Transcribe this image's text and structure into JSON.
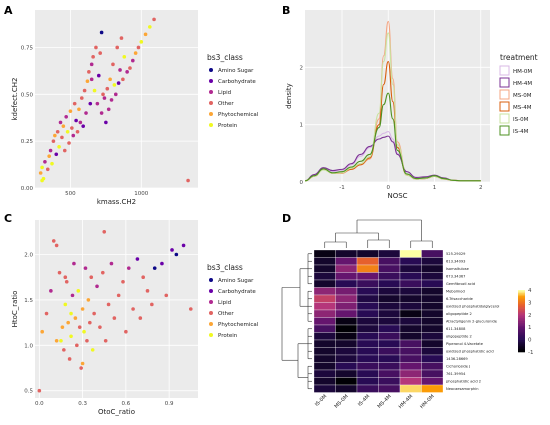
{
  "panels": {
    "A": {
      "letter": "A",
      "xlabel": "kmass.CH2",
      "ylabel": "kdefect.CH2",
      "xticks": [
        "500",
        "1000"
      ],
      "yticks": [
        "0.00",
        "0.25",
        "0.50",
        "0.75"
      ],
      "legend_title": "bs3_class",
      "legend_items": [
        "Amino Sugar",
        "Carbohydrate",
        "Lipid",
        "Other",
        "Phytochemical",
        "Protein"
      ]
    },
    "B": {
      "letter": "B",
      "xlabel": "NOSC",
      "ylabel": "density",
      "xticks": [
        "-1",
        "0",
        "1",
        "2"
      ],
      "yticks": [
        "0",
        "1",
        "2"
      ],
      "legend_title": "treatment",
      "legend_items": [
        "HM-0M",
        "HM-4M",
        "MS-0M",
        "MS-4M",
        "IS-0M",
        "IS-4M"
      ]
    },
    "C": {
      "letter": "C",
      "xlabel": "OtoC_ratio",
      "ylabel": "HtoC_ratio",
      "xticks": [
        "0.0",
        "0.3",
        "0.6",
        "0.9"
      ],
      "yticks": [
        "0.5",
        "1.0",
        "1.5",
        "2.0"
      ],
      "legend_title": "bs3_class",
      "legend_items": [
        "Amino Sugar",
        "Carbohydrate",
        "Lipid",
        "Other",
        "Phytochemical",
        "Protein"
      ]
    },
    "D": {
      "letter": "D",
      "columns": [
        "IS-0M",
        "MS-0M",
        "IS-4M",
        "MS-4M",
        "HM-4M",
        "HM-0M"
      ],
      "rows": [
        "525.29029",
        "613.34093",
        "Isomaltulose",
        "673.34367",
        "Gemfibrozil acid",
        "Mebolmod",
        "6-Trisaccharide",
        "oxidized phosphatidylglycerol",
        "oligopeptide 2",
        "Atractyligenin 2-glucuronide",
        "611.34808",
        "oligopeptide 2",
        "Piperonol 4-Vacetate",
        "oxidized phosphatidic acid",
        "1436.28669",
        "Cichorioside J",
        "761.39954",
        "phosphatidic acid 2",
        "Neocaesamorphin"
      ],
      "colorbar_ticks": [
        "4",
        "3",
        "2",
        "1",
        "0",
        "-1"
      ]
    }
  },
  "colors": {
    "Amino Sugar": "#0d0887",
    "Carbohydrate": "#6a00a8",
    "Lipid": "#b12a90",
    "Other": "#e16462",
    "Phytochemical": "#fca636",
    "Protein": "#f0f921",
    "HM-0M": "#d9b8e6",
    "HM-4M": "#7b3294",
    "MS-0M": "#f4a582",
    "MS-4M": "#d95f0e",
    "IS-0M": "#c9e3a0",
    "IS-4M": "#4d9221"
  },
  "chart_data": [
    {
      "type": "scatter",
      "panel": "A",
      "xlim": [
        250,
        1400
      ],
      "ylim": [
        0,
        0.95
      ],
      "grid": true,
      "legend_placement": "right",
      "points": [
        [
          290,
          0.08,
          "Phytochemical"
        ],
        [
          300,
          0.11,
          "Protein"
        ],
        [
          310,
          0.05,
          "Protein"
        ],
        [
          320,
          0.14,
          "Lipid"
        ],
        [
          340,
          0.1,
          "Other"
        ],
        [
          350,
          0.17,
          "Phytochemical"
        ],
        [
          360,
          0.2,
          "Lipid"
        ],
        [
          370,
          0.13,
          "Protein"
        ],
        [
          380,
          0.25,
          "Other"
        ],
        [
          390,
          0.28,
          "Phytochemical"
        ],
        [
          400,
          0.18,
          "Carbohydrate"
        ],
        [
          410,
          0.3,
          "Other"
        ],
        [
          420,
          0.22,
          "Protein"
        ],
        [
          430,
          0.35,
          "Lipid"
        ],
        [
          440,
          0.27,
          "Other"
        ],
        [
          450,
          0.33,
          "Phytochemical"
        ],
        [
          460,
          0.2,
          "Other"
        ],
        [
          470,
          0.38,
          "Lipid"
        ],
        [
          480,
          0.3,
          "Protein"
        ],
        [
          490,
          0.24,
          "Other"
        ],
        [
          500,
          0.41,
          "Phytochemical"
        ],
        [
          510,
          0.32,
          "Other"
        ],
        [
          520,
          0.28,
          "Lipid"
        ],
        [
          530,
          0.45,
          "Other"
        ],
        [
          540,
          0.36,
          "Carbohydrate"
        ],
        [
          550,
          0.3,
          "Other"
        ],
        [
          560,
          0.42,
          "Phytochemical"
        ],
        [
          570,
          0.35,
          "Lipid"
        ],
        [
          580,
          0.48,
          "Other"
        ],
        [
          590,
          0.33,
          "Carbohydrate"
        ],
        [
          600,
          0.52,
          "Other"
        ],
        [
          610,
          0.4,
          "Lipid"
        ],
        [
          620,
          0.57,
          "Phytochemical"
        ],
        [
          630,
          0.62,
          "Other"
        ],
        [
          640,
          0.45,
          "Carbohydrate"
        ],
        [
          650,
          0.66,
          "Lipid"
        ],
        [
          660,
          0.7,
          "Other"
        ],
        [
          670,
          0.52,
          "Protein"
        ],
        [
          680,
          0.75,
          "Other"
        ],
        [
          690,
          0.45,
          "Lipid"
        ],
        [
          700,
          0.6,
          "Carbohydrate"
        ],
        [
          710,
          0.72,
          "Other"
        ],
        [
          720,
          0.4,
          "Lipid"
        ],
        [
          730,
          0.5,
          "Other"
        ],
        [
          740,
          0.48,
          "Lipid"
        ],
        [
          750,
          0.35,
          "Carbohydrate"
        ],
        [
          760,
          0.53,
          "Other"
        ],
        [
          770,
          0.42,
          "Lipid"
        ],
        [
          780,
          0.58,
          "Phytochemical"
        ],
        [
          790,
          0.47,
          "Lipid"
        ],
        [
          800,
          0.66,
          "Other"
        ],
        [
          810,
          0.55,
          "Protein"
        ],
        [
          820,
          0.5,
          "Lipid"
        ],
        [
          830,
          0.75,
          "Other"
        ],
        [
          840,
          0.56,
          "Carbohydrate"
        ],
        [
          850,
          0.63,
          "Lipid"
        ],
        [
          860,
          0.8,
          "Other"
        ],
        [
          870,
          0.58,
          "Other"
        ],
        [
          880,
          0.7,
          "Protein"
        ],
        [
          900,
          0.62,
          "Lipid"
        ],
        [
          920,
          0.64,
          "Other"
        ],
        [
          940,
          0.68,
          "Lipid"
        ],
        [
          960,
          0.72,
          "Phytochemical"
        ],
        [
          980,
          0.75,
          "Other"
        ],
        [
          1000,
          0.78,
          "Protein"
        ],
        [
          1030,
          0.82,
          "Phytochemical"
        ],
        [
          1060,
          0.86,
          "Protein"
        ],
        [
          1090,
          0.9,
          "Other"
        ],
        [
          720,
          0.83,
          "Amino Sugar"
        ],
        [
          1330,
          0.04,
          "Other"
        ],
        [
          300,
          0.04,
          "Protein"
        ],
        [
          650,
          0.58,
          "Lipid"
        ]
      ]
    },
    {
      "type": "line",
      "panel": "B",
      "xlim": [
        -1.8,
        2.2
      ],
      "ylim": [
        0,
        3.0
      ],
      "grid": true,
      "legend_placement": "right",
      "x": [
        -1.8,
        -1.6,
        -1.4,
        -1.2,
        -1.0,
        -0.8,
        -0.6,
        -0.4,
        -0.2,
        -0.1,
        0.0,
        0.1,
        0.2,
        0.4,
        0.6,
        0.8,
        1.0,
        1.2,
        1.4,
        1.6,
        1.8,
        2.0
      ],
      "series": [
        {
          "name": "HM-0M",
          "values": [
            0.02,
            0.12,
            0.24,
            0.18,
            0.2,
            0.3,
            0.45,
            0.6,
            0.8,
            0.85,
            0.88,
            0.75,
            0.5,
            0.18,
            0.07,
            0.08,
            0.12,
            0.06,
            0.03,
            0.02,
            0.02,
            0.02
          ]
        },
        {
          "name": "HM-4M",
          "values": [
            0.02,
            0.13,
            0.25,
            0.2,
            0.22,
            0.32,
            0.48,
            0.62,
            0.75,
            0.78,
            0.8,
            0.7,
            0.48,
            0.18,
            0.08,
            0.09,
            0.12,
            0.07,
            0.03,
            0.02,
            0.02,
            0.02
          ]
        },
        {
          "name": "MS-0M",
          "values": [
            0.02,
            0.1,
            0.22,
            0.15,
            0.15,
            0.22,
            0.3,
            0.4,
            1.1,
            2.2,
            2.8,
            1.8,
            0.7,
            0.12,
            0.05,
            0.06,
            0.1,
            0.05,
            0.03,
            0.02,
            0.02,
            0.02
          ]
        },
        {
          "name": "MS-4M",
          "values": [
            0.02,
            0.1,
            0.22,
            0.15,
            0.16,
            0.22,
            0.3,
            0.42,
            1.0,
            1.7,
            2.1,
            1.4,
            0.6,
            0.12,
            0.05,
            0.06,
            0.1,
            0.05,
            0.03,
            0.02,
            0.02,
            0.02
          ]
        },
        {
          "name": "IS-0M",
          "values": [
            0.02,
            0.1,
            0.21,
            0.15,
            0.16,
            0.24,
            0.32,
            0.44,
            1.2,
            2.1,
            2.6,
            1.7,
            0.65,
            0.12,
            0.05,
            0.06,
            0.1,
            0.05,
            0.03,
            0.02,
            0.02,
            0.02
          ]
        },
        {
          "name": "IS-4M",
          "values": [
            0.02,
            0.11,
            0.23,
            0.16,
            0.18,
            0.26,
            0.36,
            0.48,
            0.95,
            1.35,
            1.55,
            1.1,
            0.55,
            0.14,
            0.06,
            0.07,
            0.11,
            0.06,
            0.03,
            0.02,
            0.02,
            0.02
          ]
        }
      ]
    },
    {
      "type": "scatter",
      "panel": "C",
      "xlim": [
        -0.03,
        1.1
      ],
      "ylim": [
        0.42,
        2.38
      ],
      "grid": true,
      "legend_placement": "right",
      "points": [
        [
          0.0,
          0.5,
          "Other"
        ],
        [
          0.02,
          1.15,
          "Phytochemical"
        ],
        [
          0.05,
          1.35,
          "Other"
        ],
        [
          0.08,
          1.6,
          "Lipid"
        ],
        [
          0.1,
          2.15,
          "Other"
        ],
        [
          0.12,
          2.1,
          "Other"
        ],
        [
          0.14,
          1.8,
          "Other"
        ],
        [
          0.15,
          1.05,
          "Protein"
        ],
        [
          0.16,
          1.2,
          "Phytochemical"
        ],
        [
          0.17,
          0.95,
          "Other"
        ],
        [
          0.18,
          1.45,
          "Protein"
        ],
        [
          0.19,
          1.7,
          "Other"
        ],
        [
          0.2,
          1.25,
          "Phytochemical"
        ],
        [
          0.21,
          0.85,
          "Other"
        ],
        [
          0.22,
          1.1,
          "Protein"
        ],
        [
          0.23,
          1.55,
          "Lipid"
        ],
        [
          0.24,
          1.9,
          "Lipid"
        ],
        [
          0.25,
          1.3,
          "Phytochemical"
        ],
        [
          0.26,
          1.0,
          "Other"
        ],
        [
          0.27,
          1.6,
          "Protein"
        ],
        [
          0.28,
          1.2,
          "Other"
        ],
        [
          0.29,
          0.75,
          "Other"
        ],
        [
          0.3,
          1.4,
          "Phytochemical"
        ],
        [
          0.31,
          1.15,
          "Protein"
        ],
        [
          0.32,
          1.85,
          "Lipid"
        ],
        [
          0.33,
          1.05,
          "Other"
        ],
        [
          0.34,
          1.5,
          "Phytochemical"
        ],
        [
          0.35,
          1.25,
          "Other"
        ],
        [
          0.36,
          1.75,
          "Other"
        ],
        [
          0.37,
          0.95,
          "Protein"
        ],
        [
          0.38,
          1.35,
          "Other"
        ],
        [
          0.4,
          1.65,
          "Lipid"
        ],
        [
          0.42,
          1.2,
          "Other"
        ],
        [
          0.44,
          1.8,
          "Other"
        ],
        [
          0.46,
          1.05,
          "Other"
        ],
        [
          0.48,
          1.45,
          "Other"
        ],
        [
          0.5,
          1.9,
          "Lipid"
        ],
        [
          0.52,
          1.3,
          "Other"
        ],
        [
          0.55,
          1.55,
          "Other"
        ],
        [
          0.58,
          1.7,
          "Other"
        ],
        [
          0.6,
          1.15,
          "Other"
        ],
        [
          0.62,
          1.85,
          "Lipid"
        ],
        [
          0.65,
          1.4,
          "Other"
        ],
        [
          0.68,
          1.95,
          "Carbohydrate"
        ],
        [
          0.7,
          1.3,
          "Other"
        ],
        [
          0.72,
          1.75,
          "Other"
        ],
        [
          0.75,
          1.6,
          "Other"
        ],
        [
          0.78,
          1.45,
          "Other"
        ],
        [
          0.8,
          1.85,
          "Amino Sugar"
        ],
        [
          0.85,
          1.9,
          "Carbohydrate"
        ],
        [
          0.88,
          1.55,
          "Other"
        ],
        [
          0.92,
          2.05,
          "Carbohydrate"
        ],
        [
          0.95,
          2.0,
          "Amino Sugar"
        ],
        [
          1.0,
          2.1,
          "Carbohydrate"
        ],
        [
          1.05,
          1.4,
          "Other"
        ],
        [
          0.45,
          2.25,
          "Other"
        ],
        [
          0.12,
          1.05,
          "Phytochemical"
        ],
        [
          0.22,
          1.35,
          "Protein"
        ],
        [
          0.3,
          0.8,
          "Phytochemical"
        ],
        [
          0.18,
          1.75,
          "Other"
        ]
      ]
    },
    {
      "type": "heatmap",
      "panel": "D",
      "x": [
        "IS-0M",
        "MS-0M",
        "IS-4M",
        "MS-4M",
        "HM-4M",
        "HM-0M"
      ],
      "y": [
        "525.29029",
        "613.34093",
        "Isomaltulose",
        "673.34367",
        "Gemfibrozil acid",
        "Mebolmod",
        "6-Trisaccharide",
        "oxidized phosphatidylglycerol",
        "oligopeptide 2",
        "Atractyligenin 2-glucuronide",
        "611.34808",
        "oligopeptide 2",
        "Piperonol 4-Vacetate",
        "oxidized phosphatidic acid",
        "1436.28669",
        "Cichorioside J",
        "761.39954",
        "phosphatidic acid 2",
        "Neocaesamorphin"
      ],
      "values": [
        [
          -0.8,
          -0.5,
          -0.5,
          -0.3,
          4.0,
          0.5
        ],
        [
          -0.5,
          1.0,
          2.8,
          0.5,
          0.0,
          -0.3
        ],
        [
          -0.5,
          1.5,
          3.2,
          0.5,
          -0.3,
          -0.5
        ],
        [
          -0.3,
          1.0,
          1.0,
          0.3,
          0.0,
          -0.3
        ],
        [
          -0.5,
          0.0,
          0.3,
          0.0,
          0.3,
          0.0
        ],
        [
          1.5,
          1.2,
          0.0,
          -0.3,
          -0.3,
          -0.5
        ],
        [
          2.2,
          1.5,
          -0.2,
          -0.5,
          -0.5,
          -0.5
        ],
        [
          2.0,
          1.3,
          0.0,
          -0.3,
          -0.3,
          -0.5
        ],
        [
          1.5,
          1.0,
          0.0,
          -0.3,
          -0.8,
          -0.5
        ],
        [
          1.0,
          -0.8,
          -0.3,
          -0.3,
          -0.3,
          -0.5
        ],
        [
          0.5,
          -1.0,
          -0.3,
          0.0,
          -0.5,
          -0.5
        ],
        [
          -0.3,
          -0.8,
          0.0,
          0.3,
          -0.5,
          -0.3
        ],
        [
          -0.5,
          -0.5,
          0.0,
          0.0,
          0.5,
          -0.5
        ],
        [
          -0.5,
          -0.3,
          0.0,
          0.3,
          0.5,
          -0.3
        ],
        [
          -0.5,
          -0.3,
          0.0,
          0.0,
          0.5,
          0.0
        ],
        [
          -0.5,
          0.0,
          0.3,
          0.3,
          1.0,
          0.5
        ],
        [
          -0.3,
          -0.5,
          0.0,
          0.5,
          1.5,
          0.5
        ],
        [
          -0.5,
          -1.0,
          0.0,
          0.3,
          2.0,
          1.0
        ],
        [
          -0.3,
          -0.5,
          0.3,
          0.5,
          3.8,
          3.5
        ]
      ],
      "colorbar_range": [
        -1,
        4
      ]
    }
  ]
}
